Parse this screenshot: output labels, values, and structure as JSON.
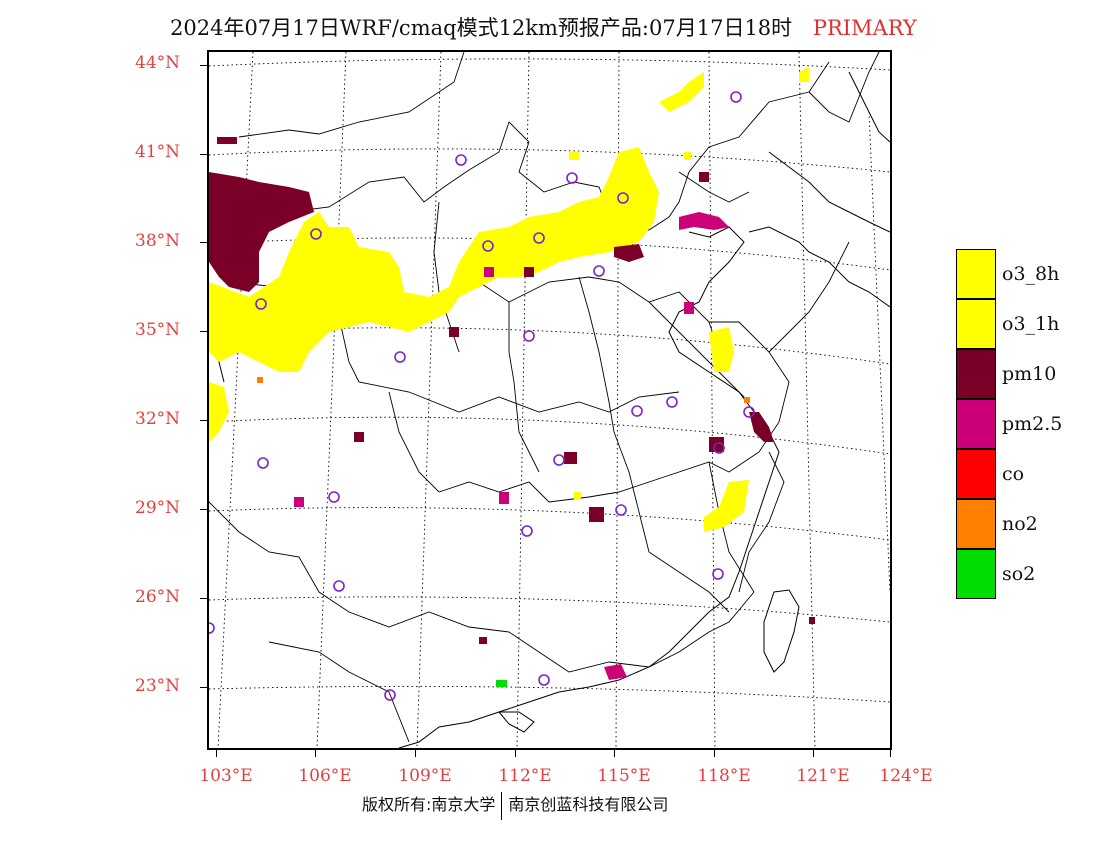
{
  "title": {
    "text": "2024年07月17日WRF/cmaq模式12km预报产品:07月17日18时",
    "tag": "PRIMARY",
    "tag_color": "#e03030"
  },
  "axes": {
    "lat_labels": [
      "44°N",
      "41°N",
      "38°N",
      "35°N",
      "32°N",
      "29°N",
      "26°N",
      "23°N"
    ],
    "lon_labels": [
      "103°E",
      "106°E",
      "109°E",
      "112°E",
      "115°E",
      "118°E",
      "121°E",
      "124°E"
    ],
    "label_color": "#e04040"
  },
  "legend": {
    "items": [
      {
        "label": "o3_8h",
        "color": "#ffff00"
      },
      {
        "label": "o3_1h",
        "color": "#ffff00"
      },
      {
        "label": "pm10",
        "color": "#7a0028"
      },
      {
        "label": "pm2.5",
        "color": "#cc0077"
      },
      {
        "label": "co",
        "color": "#ff0000"
      },
      {
        "label": "no2",
        "color": "#ff8000"
      },
      {
        "label": "so2",
        "color": "#00dd00"
      }
    ]
  },
  "footer": {
    "left": "版权所有:南京大学",
    "right": "南京创蓝科技有限公司"
  },
  "map": {
    "station_marker_color": "#7b22cc",
    "boundary_color": "#000000"
  }
}
